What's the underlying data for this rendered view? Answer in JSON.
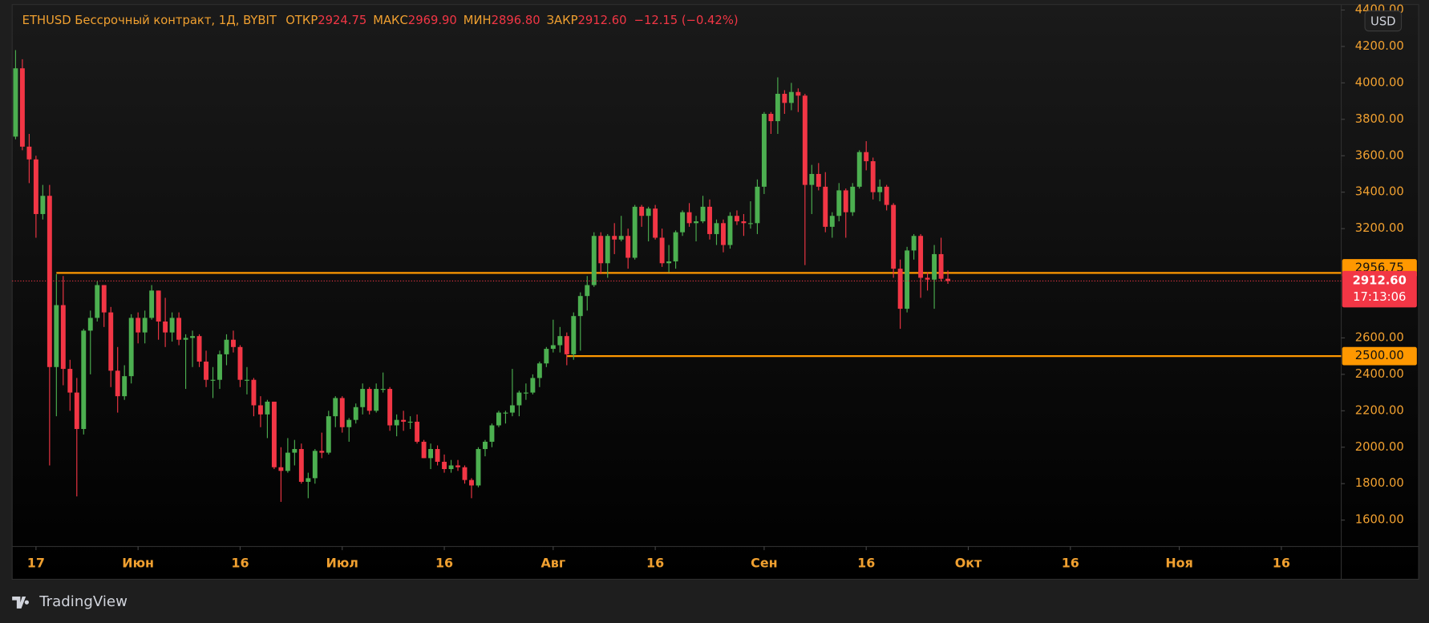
{
  "chart_data": {
    "type": "candlestick",
    "title": "ETHUSD Бессрочный контракт, 1Д, BYBIT",
    "header": [
      {
        "label": "ОТКР",
        "value": "2924.75"
      },
      {
        "label": "МАКС",
        "value": "2969.90"
      },
      {
        "label": "МИН",
        "value": "2896.80"
      },
      {
        "label": "ЗАКР",
        "value": "2912.60"
      }
    ],
    "change": "−12.15 (−0.42%)",
    "currency": "USD",
    "x": [
      -3,
      -2,
      -1,
      0,
      1,
      2,
      3,
      4,
      5,
      6,
      7,
      8,
      9,
      10,
      11,
      12,
      13,
      14,
      15,
      16,
      17,
      18,
      19,
      20,
      21,
      22,
      23,
      24,
      25,
      26,
      27,
      28,
      29,
      30,
      31,
      32,
      33,
      34,
      35,
      36,
      37,
      38,
      39,
      40,
      41,
      42,
      43,
      44,
      45,
      46,
      47,
      48,
      49,
      50,
      51,
      52,
      53,
      54,
      55,
      56,
      57,
      58,
      59,
      60,
      61,
      62,
      63,
      64,
      65,
      66,
      67,
      68,
      69,
      70,
      71,
      72,
      73,
      74,
      75,
      76,
      77,
      78,
      79,
      80,
      81,
      82,
      83,
      84,
      85,
      86,
      87,
      88,
      89,
      90,
      91,
      92,
      93,
      94,
      95,
      96,
      97,
      98,
      99,
      100,
      101,
      102,
      103,
      104,
      105,
      106,
      107,
      108,
      109,
      110,
      111,
      112,
      113,
      114,
      115,
      116,
      117,
      118,
      119,
      120,
      121,
      122,
      123,
      124,
      125,
      126,
      127,
      128,
      129,
      130,
      131,
      132,
      133,
      134
    ],
    "series": [
      {
        "up_color": "#4caf50",
        "down_color": "#f23645",
        "open": [
          3705,
          4080,
          3650,
          3580,
          3280,
          3380,
          2440,
          2780,
          2430,
          2300,
          2100,
          2640,
          2710,
          2890,
          2740,
          2420,
          2280,
          2390,
          2710,
          2630,
          2710,
          2860,
          2690,
          2630,
          2710,
          2590,
          2600,
          2610,
          2470,
          2370,
          2370,
          2510,
          2590,
          2550,
          2370,
          2370,
          2230,
          2180,
          2250,
          1890,
          1870,
          1970,
          1990,
          1810,
          1830,
          1980,
          1970,
          2170,
          2270,
          2110,
          2150,
          2220,
          2320,
          2200,
          2320,
          2320,
          2120,
          2150,
          2140,
          2140,
          2030,
          1940,
          1990,
          1920,
          1880,
          1900,
          1890,
          1820,
          1790,
          1990,
          2030,
          2120,
          2190,
          2190,
          2230,
          2300,
          2300,
          2380,
          2460,
          2540,
          2560,
          2610,
          2510,
          2720,
          2830,
          2890,
          3160,
          3010,
          3160,
          3140,
          3160,
          3040,
          3320,
          3270,
          3310,
          3150,
          3010,
          3020,
          3180,
          3290,
          3230,
          3240,
          3320,
          3170,
          3230,
          3110,
          3270,
          3240,
          3230,
          3230,
          3430,
          3830,
          3790,
          3940,
          3890,
          3950,
          3930,
          3440,
          3500,
          3430,
          3210,
          3270,
          3410,
          3290,
          3430,
          3620,
          3570,
          3400,
          3430,
          3330,
          2980,
          2760,
          3080,
          3160,
          2930,
          2920,
          3060,
          2924.75
        ],
        "high": [
          4180,
          4130,
          3720,
          3600,
          3440,
          3440,
          2950,
          2940,
          2480,
          2380,
          2650,
          2750,
          2910,
          2890,
          2770,
          2550,
          2450,
          2730,
          2740,
          2750,
          2890,
          2860,
          2820,
          2740,
          2740,
          2620,
          2640,
          2620,
          2530,
          2440,
          2530,
          2620,
          2640,
          2560,
          2440,
          2380,
          2280,
          2260,
          2250,
          2000,
          2050,
          2040,
          2020,
          1860,
          1990,
          2080,
          2200,
          2280,
          2280,
          2160,
          2240,
          2350,
          2330,
          2350,
          2410,
          2330,
          2180,
          2200,
          2170,
          2180,
          2040,
          2020,
          2010,
          1960,
          1930,
          1930,
          1900,
          1830,
          2000,
          2040,
          2130,
          2200,
          2200,
          2430,
          2310,
          2350,
          2400,
          2470,
          2550,
          2700,
          2660,
          2630,
          2740,
          2850,
          2940,
          3180,
          3180,
          3170,
          3230,
          3270,
          3200,
          3330,
          3330,
          3320,
          3330,
          3200,
          3110,
          3190,
          3300,
          3340,
          3270,
          3380,
          3360,
          3250,
          3250,
          3290,
          3300,
          3280,
          3350,
          3470,
          3840,
          3840,
          4030,
          3960,
          4000,
          3970,
          3940,
          3550,
          3560,
          3510,
          3290,
          3450,
          3420,
          3450,
          3630,
          3680,
          3590,
          3470,
          3440,
          3340,
          3030,
          3100,
          3170,
          3170,
          2960,
          3110,
          3150,
          2969.9
        ],
        "low": [
          3690,
          3630,
          3450,
          3150,
          3250,
          1900,
          2170,
          2340,
          2200,
          1730,
          2070,
          2400,
          2690,
          2660,
          2330,
          2190,
          2260,
          2350,
          2570,
          2570,
          2700,
          2590,
          2550,
          2580,
          2560,
          2320,
          2440,
          2440,
          2330,
          2270,
          2320,
          2450,
          2520,
          2330,
          2290,
          2170,
          2110,
          2050,
          1880,
          1700,
          1860,
          1900,
          1800,
          1720,
          1800,
          1940,
          1960,
          2110,
          2080,
          2030,
          2130,
          2180,
          2180,
          2190,
          2300,
          2090,
          2060,
          2090,
          2100,
          2020,
          1940,
          1880,
          1900,
          1860,
          1860,
          1870,
          1800,
          1720,
          1780,
          1950,
          2000,
          2110,
          2130,
          2170,
          2170,
          2260,
          2290,
          2330,
          2440,
          2520,
          2520,
          2450,
          2480,
          2530,
          2750,
          2880,
          2950,
          2930,
          3060,
          3130,
          2980,
          3030,
          3210,
          3130,
          3140,
          2990,
          2960,
          2980,
          3160,
          3210,
          3130,
          3230,
          3140,
          3110,
          3070,
          3090,
          3220,
          3160,
          3200,
          3170,
          3390,
          3720,
          3720,
          3830,
          3850,
          3840,
          3000,
          3280,
          3410,
          3180,
          3150,
          3240,
          3150,
          3270,
          3420,
          3520,
          3360,
          3350,
          3300,
          2930,
          2650,
          2740,
          3030,
          2820,
          2860,
          2760,
          2910,
          2896.8
        ],
        "close": [
          4080,
          3650,
          3580,
          3280,
          3380,
          2440,
          2780,
          2430,
          2300,
          2100,
          2640,
          2710,
          2890,
          2740,
          2420,
          2280,
          2390,
          2710,
          2630,
          2710,
          2860,
          2690,
          2630,
          2710,
          2590,
          2600,
          2610,
          2470,
          2370,
          2370,
          2510,
          2590,
          2550,
          2370,
          2370,
          2230,
          2180,
          2250,
          1890,
          1870,
          1970,
          1990,
          1810,
          1830,
          1980,
          1970,
          2170,
          2270,
          2110,
          2150,
          2220,
          2320,
          2200,
          2320,
          2320,
          2120,
          2150,
          2140,
          2140,
          2030,
          1940,
          1990,
          1920,
          1880,
          1900,
          1890,
          1820,
          1790,
          1990,
          2030,
          2120,
          2190,
          2190,
          2230,
          2300,
          2300,
          2380,
          2460,
          2540,
          2560,
          2610,
          2510,
          2720,
          2830,
          2890,
          3160,
          3010,
          3160,
          3140,
          3160,
          3040,
          3320,
          3270,
          3310,
          3150,
          3010,
          3020,
          3180,
          3290,
          3230,
          3240,
          3320,
          3170,
          3230,
          3110,
          3270,
          3240,
          3230,
          3230,
          3430,
          3830,
          3790,
          3940,
          3890,
          3950,
          3930,
          3440,
          3500,
          3430,
          3210,
          3270,
          3410,
          3290,
          3430,
          3620,
          3570,
          3400,
          3430,
          3330,
          2980,
          2760,
          3080,
          3160,
          2930,
          2920,
          3060,
          2924.75,
          2912.6
        ]
      }
    ],
    "xlim": [
      -3.5,
      191.8
    ],
    "xticks": [
      {
        "value": 0,
        "label": "17"
      },
      {
        "value": 15,
        "label": "Июн"
      },
      {
        "value": 30,
        "label": "16"
      },
      {
        "value": 45,
        "label": "Июл"
      },
      {
        "value": 60,
        "label": "16"
      },
      {
        "value": 76,
        "label": "Авг"
      },
      {
        "value": 91,
        "label": "16"
      },
      {
        "value": 107,
        "label": "Сен"
      },
      {
        "value": 122,
        "label": "16"
      },
      {
        "value": 137,
        "label": "Окт"
      },
      {
        "value": 152,
        "label": "16"
      },
      {
        "value": 168,
        "label": "Ноя"
      },
      {
        "value": 183,
        "label": "16"
      }
    ],
    "ylim": [
      1455,
      4430
    ],
    "yticks": [
      {
        "value": 1600,
        "label": "1600.00"
      },
      {
        "value": 1800,
        "label": "1800.00"
      },
      {
        "value": 2000,
        "label": "2000.00"
      },
      {
        "value": 2200,
        "label": "2200.00"
      },
      {
        "value": 2400,
        "label": "2400.00"
      },
      {
        "value": 2600,
        "label": "2600.00"
      },
      {
        "value": 3200,
        "label": "3200.00"
      },
      {
        "value": 3400,
        "label": "3400.00"
      },
      {
        "value": 3600,
        "label": "3600.00"
      },
      {
        "value": 3800,
        "label": "3800.00"
      },
      {
        "value": 4000,
        "label": "4000.00"
      },
      {
        "value": 4200,
        "label": "4200.00"
      },
      {
        "value": 4400,
        "label": "4400.00"
      }
    ],
    "hlines": [
      {
        "value": 2956.75,
        "x_start": 3,
        "color": "#ff9800"
      },
      {
        "value": 2500,
        "label": "2500.00",
        "x_start": 78,
        "color": "#ff9800"
      }
    ],
    "last_price": {
      "value": 2912.6,
      "label": "2912.60",
      "countdown": "17:13:06",
      "color": "#f23645"
    }
  },
  "brand": "TradingView"
}
